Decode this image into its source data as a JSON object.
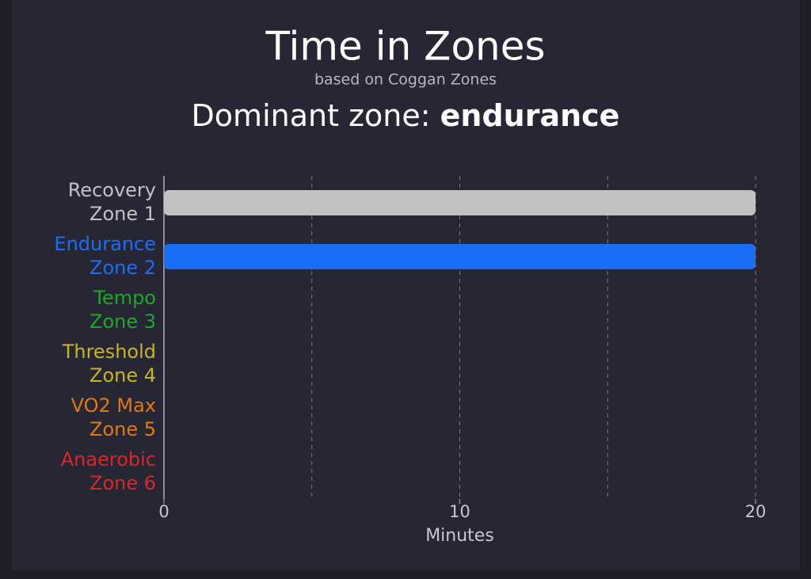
{
  "chart_data": {
    "type": "bar",
    "orientation": "horizontal",
    "title": "Time in Zones",
    "subtitle": "based on Coggan Zones",
    "dominant_label": "Dominant zone:",
    "dominant_value": "endurance",
    "categories": [
      [
        "Recovery",
        "Zone 1"
      ],
      [
        "Endurance",
        "Zone 2"
      ],
      [
        "Tempo",
        "Zone 3"
      ],
      [
        "Threshold",
        "Zone 4"
      ],
      [
        "VO2 Max",
        "Zone 5"
      ],
      [
        "Anaerobic",
        "Zone 6"
      ]
    ],
    "colors": [
      "#c2c2c2",
      "#1a6ef5",
      "#22a52a",
      "#c9b51f",
      "#e07a10",
      "#d62828"
    ],
    "values": [
      20,
      20,
      0,
      0,
      0,
      0
    ],
    "xlabel": "Minutes",
    "xlim": [
      0,
      20
    ],
    "xticks": [
      0,
      10,
      20
    ],
    "grid_xticks": [
      5,
      10,
      15,
      20
    ],
    "grid": true
  }
}
